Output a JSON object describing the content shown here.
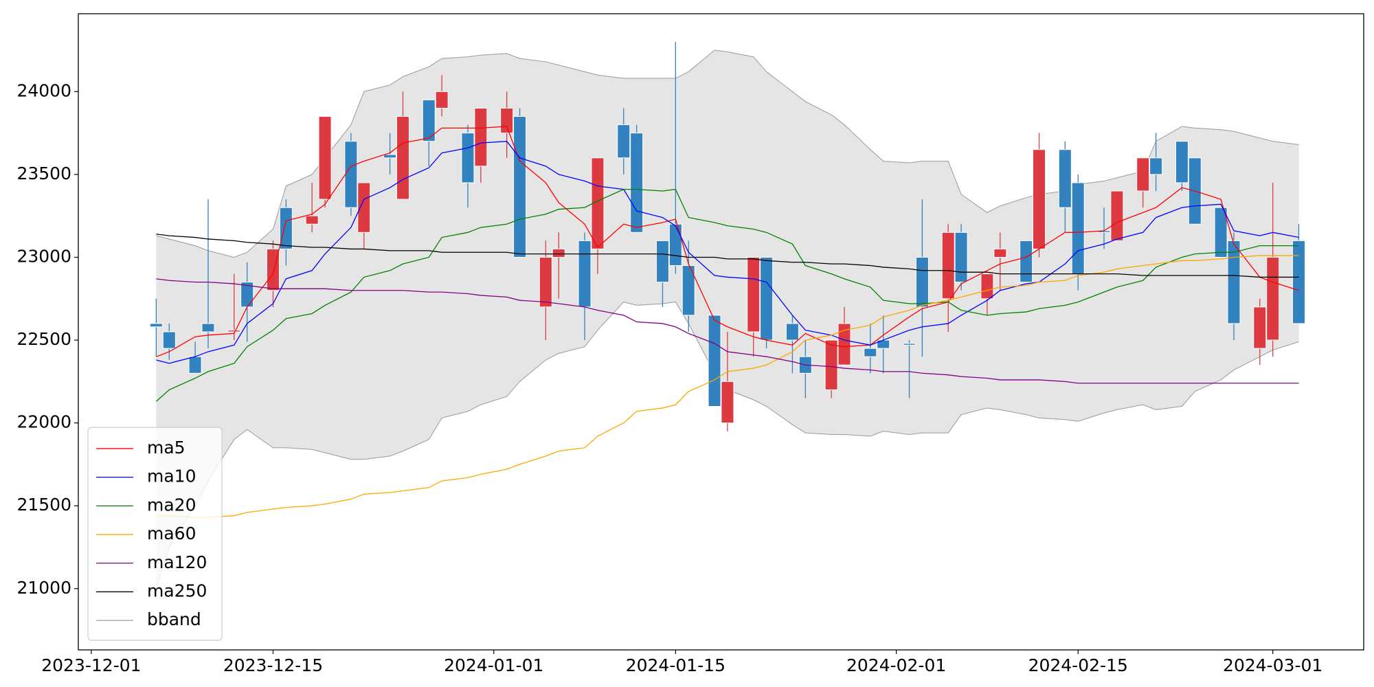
{
  "chart_data": {
    "type": "candlestick",
    "x": [
      "2023-12-06",
      "2023-12-07",
      "2023-12-09",
      "2023-12-10",
      "2023-12-12",
      "2023-12-13",
      "2023-12-15",
      "2023-12-16",
      "2023-12-18",
      "2023-12-19",
      "2023-12-21",
      "2023-12-22",
      "2023-12-24",
      "2023-12-25",
      "2023-12-27",
      "2023-12-28",
      "2023-12-30",
      "2023-12-31",
      "2024-01-02",
      "2024-01-03",
      "2024-01-05",
      "2024-01-06",
      "2024-01-08",
      "2024-01-09",
      "2024-01-11",
      "2024-01-12",
      "2024-01-14",
      "2024-01-15",
      "2024-01-16",
      "2024-01-18",
      "2024-01-19",
      "2024-01-21",
      "2024-01-22",
      "2024-01-24",
      "2024-01-25",
      "2024-01-27",
      "2024-01-28",
      "2024-01-30",
      "2024-01-31",
      "2024-02-02",
      "2024-02-03",
      "2024-02-05",
      "2024-02-06",
      "2024-02-08",
      "2024-02-09",
      "2024-02-11",
      "2024-02-12",
      "2024-02-14",
      "2024-02-15",
      "2024-02-17",
      "2024-02-18",
      "2024-02-20",
      "2024-02-21",
      "2024-02-23",
      "2024-02-24",
      "2024-02-26",
      "2024-02-27",
      "2024-02-29",
      "2024-03-01",
      "2024-03-03"
    ],
    "open": [
      22600,
      22550,
      22400,
      22600,
      22550,
      22850,
      22800,
      23300,
      23200,
      23350,
      23700,
      23150,
      23620,
      23350,
      23950,
      23900,
      23750,
      23550,
      23750,
      23850,
      22700,
      23000,
      23100,
      23050,
      23800,
      23750,
      23100,
      23200,
      22950,
      22650,
      22000,
      22550,
      23000,
      22600,
      22400,
      22200,
      22350,
      22450,
      22500,
      22480,
      23000,
      22750,
      23150,
      22750,
      23000,
      23100,
      23050,
      23650,
      23450,
      23160,
      23100,
      23400,
      23600,
      23700,
      23600,
      23300,
      23100,
      22450,
      22500,
      23100
    ],
    "high": [
      22750,
      22600,
      22490,
      23350,
      22900,
      22970,
      23100,
      23350,
      23450,
      23850,
      23750,
      23450,
      23750,
      24000,
      23950,
      24100,
      23800,
      23900,
      24000,
      23900,
      23100,
      23150,
      23150,
      23600,
      23900,
      23800,
      23100,
      24300,
      23100,
      22650,
      22550,
      23000,
      23000,
      22650,
      22500,
      22500,
      22700,
      22600,
      22650,
      22500,
      23350,
      23200,
      23200,
      22900,
      23150,
      23100,
      23750,
      23700,
      23500,
      23300,
      23400,
      23600,
      23750,
      23700,
      23600,
      23300,
      23150,
      22750,
      23450,
      23200
    ],
    "low": [
      22400,
      22380,
      22300,
      22450,
      22500,
      22490,
      22700,
      22950,
      23150,
      23300,
      23250,
      23050,
      23500,
      23350,
      23550,
      23850,
      23300,
      23450,
      23600,
      23000,
      22500,
      22750,
      22500,
      22900,
      23500,
      23150,
      22700,
      22900,
      22550,
      22100,
      21950,
      22400,
      22450,
      22300,
      22150,
      22150,
      22350,
      22300,
      22300,
      22150,
      22400,
      22550,
      22800,
      22650,
      22800,
      22850,
      23000,
      23150,
      22800,
      23050,
      23100,
      23300,
      23400,
      23400,
      23200,
      23000,
      22500,
      22350,
      22400,
      22600
    ],
    "close": [
      22580,
      22450,
      22300,
      22550,
      22560,
      22700,
      23050,
      23050,
      23250,
      23850,
      23300,
      23450,
      23600,
      23850,
      23700,
      24000,
      23450,
      23900,
      23900,
      23000,
      23000,
      23050,
      22700,
      23600,
      23600,
      23150,
      22850,
      22950,
      22650,
      22100,
      22250,
      23000,
      22500,
      22500,
      22300,
      22500,
      22600,
      22400,
      22450,
      22470,
      22700,
      23150,
      22850,
      22900,
      23050,
      22850,
      23650,
      23300,
      22900,
      23150,
      23400,
      23600,
      23500,
      23450,
      23200,
      23000,
      22600,
      22700,
      23000,
      22600
    ],
    "up_color": "#dc3a40",
    "down_color": "#3282bf",
    "series": [
      {
        "name": "ma5",
        "color": "#ff0000",
        "values": [
          22400,
          22430,
          22520,
          22530,
          22540,
          22700,
          22900,
          23220,
          23260,
          23320,
          23550,
          23580,
          23630,
          23690,
          23720,
          23780,
          23780,
          23780,
          23790,
          23580,
          23450,
          23330,
          23200,
          23060,
          23200,
          23180,
          23210,
          23230,
          22960,
          22620,
          22580,
          22520,
          22500,
          22470,
          22540,
          22470,
          22460,
          22470,
          22530,
          22640,
          22690,
          22730,
          22840,
          22920,
          22960,
          23000,
          23050,
          23150,
          23150,
          23160,
          23210,
          23270,
          23300,
          23420,
          23400,
          23350,
          23080,
          22880,
          22850,
          22800
        ]
      },
      {
        "name": "ma10",
        "color": "#0000ff",
        "values": [
          22380,
          22360,
          22400,
          22430,
          22470,
          22600,
          22720,
          22870,
          22920,
          23020,
          23180,
          23350,
          23420,
          23470,
          23540,
          23630,
          23660,
          23690,
          23700,
          23600,
          23550,
          23500,
          23460,
          23430,
          23410,
          23280,
          23240,
          23190,
          23030,
          22890,
          22880,
          22870,
          22850,
          22650,
          22560,
          22530,
          22500,
          22470,
          22500,
          22560,
          22580,
          22600,
          22650,
          22740,
          22800,
          22840,
          22850,
          22960,
          23040,
          23080,
          23110,
          23150,
          23240,
          23300,
          23310,
          23320,
          23160,
          23130,
          23150,
          23120
        ]
      },
      {
        "name": "ma20",
        "color": "#008000",
        "values": [
          22130,
          22200,
          22270,
          22310,
          22360,
          22460,
          22560,
          22630,
          22660,
          22710,
          22790,
          22880,
          22920,
          22960,
          23000,
          23120,
          23150,
          23180,
          23200,
          23230,
          23260,
          23290,
          23300,
          23340,
          23410,
          23410,
          23400,
          23410,
          23240,
          23210,
          23190,
          23170,
          23150,
          23080,
          22950,
          22900,
          22870,
          22820,
          22740,
          22720,
          22720,
          22730,
          22680,
          22650,
          22660,
          22670,
          22690,
          22710,
          22730,
          22790,
          22820,
          22860,
          22940,
          23000,
          23020,
          23030,
          23030,
          23070,
          23070,
          23070
        ]
      },
      {
        "name": "ma60",
        "color": "#ffa500",
        "values": [
          21440,
          21440,
          21430,
          21430,
          21440,
          21460,
          21480,
          21490,
          21500,
          21510,
          21540,
          21570,
          21580,
          21590,
          21610,
          21650,
          21670,
          21690,
          21720,
          21750,
          21800,
          21830,
          21850,
          21920,
          22000,
          22070,
          22090,
          22110,
          22190,
          22260,
          22310,
          22330,
          22350,
          22430,
          22500,
          22530,
          22560,
          22590,
          22640,
          22680,
          22710,
          22740,
          22760,
          22800,
          22820,
          22830,
          22850,
          22860,
          22890,
          22910,
          22930,
          22950,
          22960,
          22980,
          22980,
          22990,
          23000,
          23010,
          23010,
          23010
        ]
      },
      {
        "name": "ma120",
        "color": "#800080",
        "values": [
          22870,
          22860,
          22850,
          22850,
          22840,
          22830,
          22810,
          22810,
          22810,
          22810,
          22800,
          22800,
          22800,
          22800,
          22790,
          22790,
          22780,
          22770,
          22760,
          22740,
          22730,
          22720,
          22700,
          22680,
          22650,
          22610,
          22600,
          22580,
          22540,
          22480,
          22430,
          22410,
          22400,
          22370,
          22350,
          22340,
          22330,
          22320,
          22310,
          22310,
          22300,
          22290,
          22280,
          22270,
          22260,
          22260,
          22260,
          22250,
          22240,
          22240,
          22240,
          22240,
          22240,
          22240,
          22240,
          22240,
          22240,
          22240,
          22240,
          22240
        ]
      },
      {
        "name": "ma250",
        "color": "#000000",
        "values": [
          23140,
          23130,
          23120,
          23110,
          23100,
          23090,
          23080,
          23070,
          23060,
          23060,
          23050,
          23050,
          23040,
          23040,
          23040,
          23030,
          23030,
          23030,
          23030,
          23020,
          23020,
          23020,
          23020,
          23020,
          23020,
          23020,
          23020,
          23010,
          23000,
          23000,
          22990,
          22990,
          22980,
          22970,
          22970,
          22960,
          22960,
          22950,
          22940,
          22930,
          22920,
          22920,
          22910,
          22910,
          22900,
          22900,
          22900,
          22900,
          22900,
          22900,
          22900,
          22890,
          22890,
          22890,
          22890,
          22890,
          22890,
          22880,
          22880,
          22880
        ]
      }
    ],
    "bband": {
      "name": "bband",
      "color": "#999999",
      "fill": "#e5e5e5",
      "upper": [
        23130,
        23110,
        23070,
        23040,
        23000,
        23030,
        23170,
        23430,
        23500,
        23600,
        23800,
        24000,
        24040,
        24090,
        24150,
        24200,
        24210,
        24220,
        24230,
        24200,
        24180,
        24160,
        24120,
        24100,
        24080,
        24080,
        24080,
        24080,
        24120,
        24250,
        24240,
        24210,
        24120,
        24000,
        23940,
        23860,
        23800,
        23650,
        23580,
        23570,
        23580,
        23580,
        23380,
        23270,
        23310,
        23360,
        23380,
        23400,
        23440,
        23460,
        23480,
        23520,
        23700,
        23790,
        23780,
        23770,
        23760,
        23720,
        23700,
        23680
      ],
      "lower": [
        21000,
        21250,
        21500,
        21650,
        21900,
        21960,
        21850,
        21850,
        21840,
        21820,
        21780,
        21780,
        21800,
        21830,
        21900,
        22030,
        22070,
        22110,
        22160,
        22250,
        22380,
        22420,
        22460,
        22560,
        22730,
        22710,
        22720,
        22730,
        22600,
        22300,
        22200,
        22140,
        22100,
        21990,
        21940,
        21930,
        21930,
        21920,
        21950,
        21930,
        21940,
        21940,
        22050,
        22090,
        22080,
        22050,
        22030,
        22020,
        22010,
        22060,
        22080,
        22110,
        22080,
        22100,
        22190,
        22260,
        22320,
        22400,
        22440,
        22490
      ]
    },
    "xlim": [
      "2023-11-30",
      "2024-03-08"
    ],
    "xticks": [
      "2023-12-01",
      "2023-12-15",
      "2024-01-01",
      "2024-01-15",
      "2024-02-01",
      "2024-02-15",
      "2024-03-01"
    ],
    "ylim": [
      20630,
      24470
    ],
    "yticks": [
      21000,
      21500,
      22000,
      22500,
      23000,
      23500,
      24000
    ],
    "legend": "lower left"
  }
}
